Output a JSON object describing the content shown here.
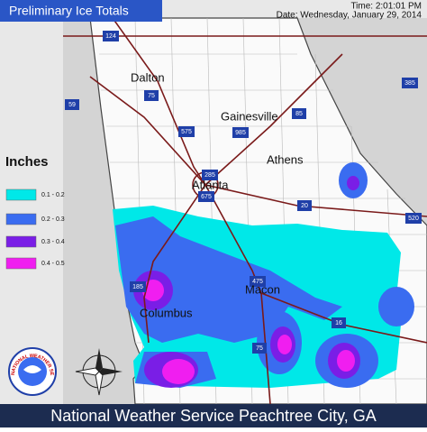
{
  "header": {
    "title": "Preliminary Ice Totals",
    "time": "Time: 2:01:01 PM",
    "date": "Date: Wednesday, January 29, 2014"
  },
  "legend": {
    "title": "Inches",
    "items": [
      {
        "label": "0.1 - 0.2",
        "color": "#00e8e8"
      },
      {
        "label": "0.2 - 0.3",
        "color": "#3a6cf0"
      },
      {
        "label": "0.3 - 0.4",
        "color": "#7a1ee6"
      },
      {
        "label": "0.4 - 0.5",
        "color": "#f01ef0"
      }
    ]
  },
  "cities": [
    "Dalton",
    "Gainesville",
    "Athens",
    "Atlanta",
    "Macon",
    "Columbus"
  ],
  "highways": [
    "124",
    "59",
    "75",
    "575",
    "985",
    "85",
    "285",
    "675",
    "20",
    "385",
    "520",
    "185",
    "475",
    "16",
    "75"
  ],
  "logo": "NATIONAL WEATHER SERVICE",
  "footer": "National Weather Service Peachtree City, GA"
}
